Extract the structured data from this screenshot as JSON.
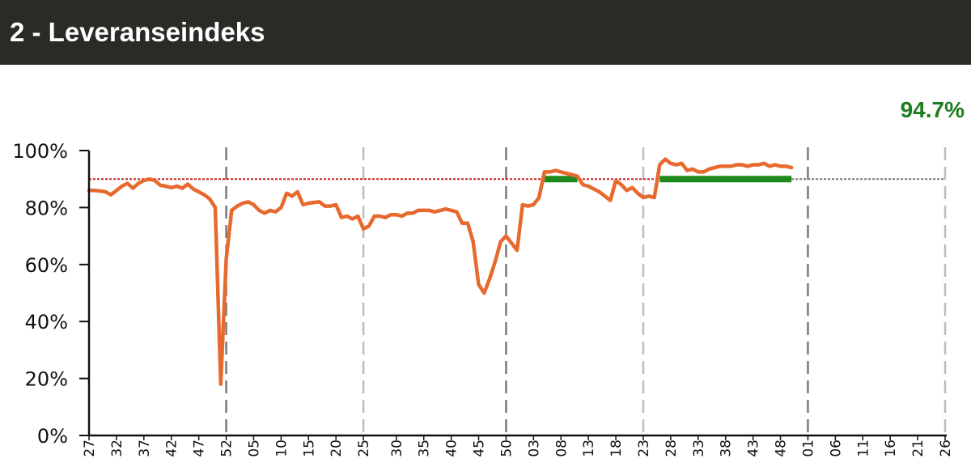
{
  "header": {
    "title": "2 - Leveranseindeks"
  },
  "kpi": {
    "value": "94.7%",
    "color": "#1e7d1e"
  },
  "chart_data": {
    "type": "line",
    "title": "",
    "xlabel": "",
    "ylabel": "",
    "ylim": [
      0,
      100
    ],
    "y_ticks": [
      "0%",
      "20%",
      "40%",
      "60%",
      "80%",
      "100%"
    ],
    "x_ticks": [
      "27",
      "32",
      "37",
      "42",
      "47",
      "52",
      "05",
      "10",
      "15",
      "20",
      "25",
      "30",
      "35",
      "40",
      "45",
      "50",
      "03",
      "08",
      "13",
      "18",
      "23",
      "28",
      "33",
      "38",
      "43",
      "48",
      "01",
      "06",
      "11",
      "16",
      "21",
      "26"
    ],
    "x_tick_positions": [
      0,
      5,
      10,
      15,
      20,
      25,
      30,
      35,
      40,
      45,
      50,
      56,
      61,
      66,
      71,
      76,
      81,
      86,
      91,
      96,
      101,
      106,
      111,
      116,
      121,
      126,
      131,
      136,
      141,
      146,
      151,
      156
    ],
    "year_boundaries_major": [
      25,
      76,
      131
    ],
    "year_boundaries_minor": [
      50,
      101,
      156
    ],
    "target_value": 90,
    "target_color": "#cc2222",
    "projection_color": "#777777",
    "line_color": "#e8692e",
    "above_target_color": "#1e8a1e",
    "grid": false,
    "legend": "none",
    "series": [
      {
        "values": [
          86,
          86,
          85.8,
          85.5,
          84.5,
          86,
          87.5,
          88.5,
          86.8,
          88.5,
          89.5,
          90,
          89.5,
          87.8,
          87.5,
          87,
          87.5,
          86.8,
          88.2,
          86.5,
          85.5,
          84.5,
          83,
          80,
          18,
          62,
          79,
          80.5,
          81.5,
          82,
          81,
          79,
          78,
          79,
          78.5,
          80,
          85,
          84,
          85.5,
          81,
          81.5,
          81.8,
          82,
          80.5,
          80.5,
          81,
          76.5,
          77,
          76,
          77,
          72.5,
          73.5,
          77,
          77,
          76.5,
          77.5,
          77.5,
          77,
          78,
          78,
          79,
          79,
          79,
          78.5,
          79,
          79.5,
          79,
          78.5,
          74.5,
          74.5,
          68,
          53,
          50,
          55,
          61,
          68,
          70,
          67.5,
          65,
          81,
          80.5,
          81,
          83.5,
          92.5,
          92.5,
          93,
          92.5,
          92,
          91.5,
          91,
          88,
          87.5,
          86.5,
          85.5,
          84,
          82.5,
          89.5,
          88,
          86,
          87,
          85,
          83.5,
          84,
          83.5,
          95,
          97,
          95.5,
          95,
          95.5,
          93,
          93.5,
          92.5,
          92.5,
          93.5,
          94,
          94.5,
          94.5,
          94.5,
          95,
          95,
          94.5,
          95,
          95,
          95.5,
          94.5,
          95,
          94.5,
          94.5,
          94
        ]
      }
    ]
  }
}
